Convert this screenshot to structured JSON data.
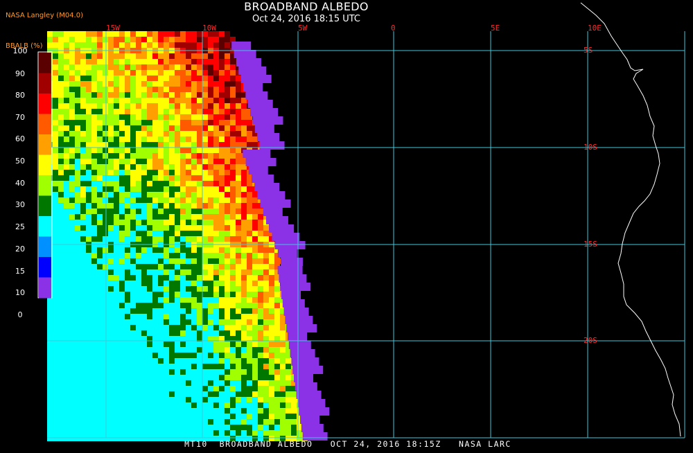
{
  "header": {
    "title": "BROADBAND ALBEDO",
    "subtitle": "Oct 24, 2016 18:15 UTC",
    "source": "NASA Langley (M04.0)"
  },
  "footer": {
    "text": "MT10  BROADBAND ALBEDO   OCT 24, 2016 18:15Z   NASA LARC"
  },
  "legend": {
    "title": "BBALB (%)",
    "labels": [
      "100",
      "90",
      "80",
      "70",
      "60",
      "50",
      "40",
      "30",
      "25",
      "20",
      "15",
      "10",
      "0"
    ],
    "colors": [
      "#5a0000",
      "#a00000",
      "#ff0000",
      "#ff5a00",
      "#ffa000",
      "#ffff00",
      "#a0ff00",
      "#007800",
      "#00ffff",
      "#0090ff",
      "#0000ff",
      "#8c32e6"
    ]
  },
  "grid": {
    "color": "#3cc8dc",
    "longitudes": [
      "15W",
      "10W",
      "5W",
      "0",
      "5E",
      "10E"
    ],
    "latitudes": [
      "5S",
      "10S",
      "15S",
      "20S"
    ]
  },
  "map": {
    "coastline_color": "#ffffff",
    "background": "#000000",
    "albedo_levels": {
      "clear_ocean_percent": 8,
      "thick_cloud_percent": 85
    }
  }
}
